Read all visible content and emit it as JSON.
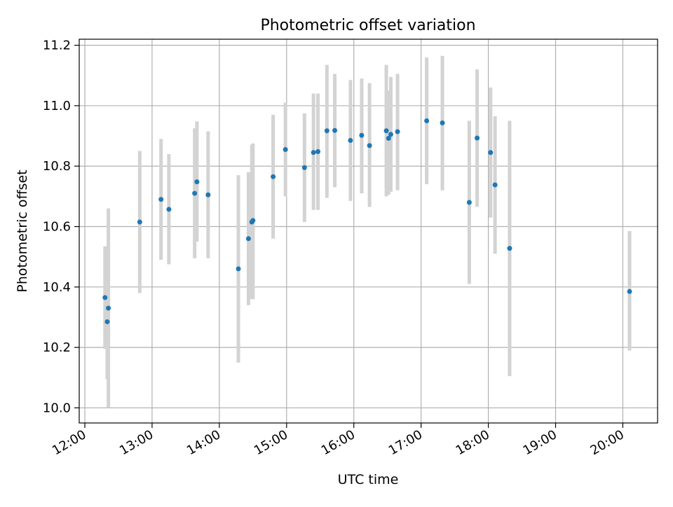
{
  "chart_data": {
    "type": "scatter",
    "title": "Photometric offset variation",
    "xlabel": "UTC time",
    "ylabel": "Photometric offset",
    "x_axis_type": "time",
    "xlim": [
      "11:55",
      "20:31"
    ],
    "ylim": [
      9.95,
      11.22
    ],
    "x_ticks": [
      "12:00",
      "13:00",
      "14:00",
      "15:00",
      "16:00",
      "17:00",
      "18:00",
      "19:00",
      "20:00"
    ],
    "y_ticks": [
      "10.0",
      "10.2",
      "10.4",
      "10.6",
      "10.8",
      "11.0",
      "11.2"
    ],
    "grid": true,
    "x_tick_rotation": "rotated",
    "colors": {
      "points": "#1f77b4",
      "errorbars": "#d3d3d3",
      "grid": "#b0b0b0"
    },
    "series": [
      {
        "points": [
          {
            "x": "12:18",
            "y": 10.365,
            "yerr_low": 10.195,
            "yerr_high": 10.535
          },
          {
            "x": "12:20",
            "y": 10.285,
            "yerr_low": 10.095,
            "yerr_high": 10.475
          },
          {
            "x": "12:21",
            "y": 10.33,
            "yerr_low": 10.0,
            "yerr_high": 10.66
          },
          {
            "x": "12:49",
            "y": 10.615,
            "yerr_low": 10.38,
            "yerr_high": 10.85
          },
          {
            "x": "13:08",
            "y": 10.69,
            "yerr_low": 10.49,
            "yerr_high": 10.89
          },
          {
            "x": "13:15",
            "y": 10.657,
            "yerr_low": 10.475,
            "yerr_high": 10.84
          },
          {
            "x": "13:38",
            "y": 10.71,
            "yerr_low": 10.495,
            "yerr_high": 10.925
          },
          {
            "x": "13:40",
            "y": 10.748,
            "yerr_low": 10.55,
            "yerr_high": 10.948
          },
          {
            "x": "13:50",
            "y": 10.705,
            "yerr_low": 10.495,
            "yerr_high": 10.915
          },
          {
            "x": "14:17",
            "y": 10.46,
            "yerr_low": 10.15,
            "yerr_high": 10.77
          },
          {
            "x": "14:26",
            "y": 10.56,
            "yerr_low": 10.34,
            "yerr_high": 10.78
          },
          {
            "x": "14:29",
            "y": 10.615,
            "yerr_low": 10.36,
            "yerr_high": 10.87
          },
          {
            "x": "14:30",
            "y": 10.62,
            "yerr_low": 10.36,
            "yerr_high": 10.875
          },
          {
            "x": "14:48",
            "y": 10.765,
            "yerr_low": 10.56,
            "yerr_high": 10.97
          },
          {
            "x": "14:59",
            "y": 10.855,
            "yerr_low": 10.7,
            "yerr_high": 11.01
          },
          {
            "x": "15:16",
            "y": 10.795,
            "yerr_low": 10.615,
            "yerr_high": 10.975
          },
          {
            "x": "15:24",
            "y": 10.845,
            "yerr_low": 10.655,
            "yerr_high": 11.04
          },
          {
            "x": "15:28",
            "y": 10.848,
            "yerr_low": 10.655,
            "yerr_high": 11.04
          },
          {
            "x": "15:36",
            "y": 10.917,
            "yerr_low": 10.695,
            "yerr_high": 11.135
          },
          {
            "x": "15:43",
            "y": 10.918,
            "yerr_low": 10.73,
            "yerr_high": 11.105
          },
          {
            "x": "15:57",
            "y": 10.885,
            "yerr_low": 10.685,
            "yerr_high": 11.085
          },
          {
            "x": "16:07",
            "y": 10.902,
            "yerr_low": 10.71,
            "yerr_high": 11.09
          },
          {
            "x": "16:14",
            "y": 10.868,
            "yerr_low": 10.665,
            "yerr_high": 11.075
          },
          {
            "x": "16:29",
            "y": 10.917,
            "yerr_low": 10.7,
            "yerr_high": 11.135
          },
          {
            "x": "16:31",
            "y": 10.892,
            "yerr_low": 10.705,
            "yerr_high": 11.05
          },
          {
            "x": "16:33",
            "y": 10.905,
            "yerr_low": 10.715,
            "yerr_high": 11.095
          },
          {
            "x": "16:39",
            "y": 10.914,
            "yerr_low": 10.72,
            "yerr_high": 11.105
          },
          {
            "x": "17:05",
            "y": 10.95,
            "yerr_low": 10.74,
            "yerr_high": 11.16
          },
          {
            "x": "17:19",
            "y": 10.943,
            "yerr_low": 10.72,
            "yerr_high": 11.165
          },
          {
            "x": "17:43",
            "y": 10.68,
            "yerr_low": 10.41,
            "yerr_high": 10.95
          },
          {
            "x": "17:50",
            "y": 10.893,
            "yerr_low": 10.665,
            "yerr_high": 11.12
          },
          {
            "x": "18:02",
            "y": 10.845,
            "yerr_low": 10.63,
            "yerr_high": 11.06
          },
          {
            "x": "18:06",
            "y": 10.738,
            "yerr_low": 10.51,
            "yerr_high": 10.965
          },
          {
            "x": "18:19",
            "y": 10.528,
            "yerr_low": 10.105,
            "yerr_high": 10.95
          },
          {
            "x": "20:06",
            "y": 10.385,
            "yerr_low": 10.19,
            "yerr_high": 10.585
          }
        ]
      }
    ]
  }
}
